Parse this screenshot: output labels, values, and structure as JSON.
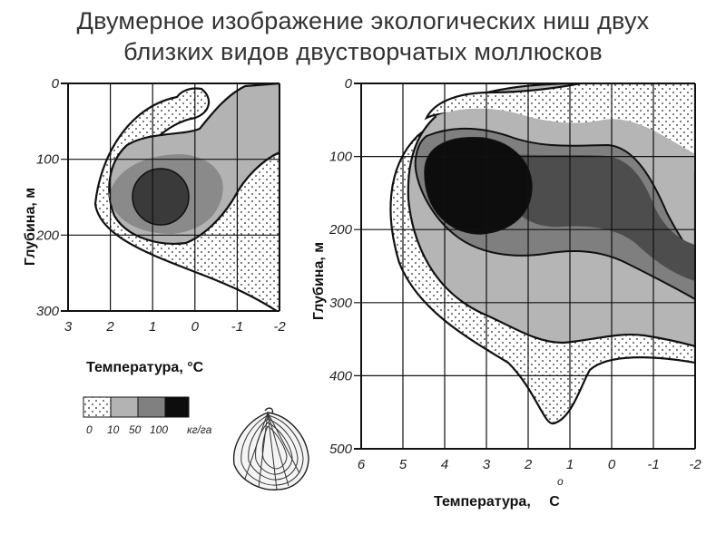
{
  "title": {
    "line1": "Двумерное изображение экологических ниш двух",
    "line2": "близких видов двустворчатых моллюсков"
  },
  "left_chart": {
    "ylabel": "Глубина, м",
    "xlabel_main": "Температура, ",
    "xlabel_deg": "°C",
    "depth_ticks": [
      "0",
      "100",
      "200",
      "300"
    ],
    "temp_ticks": [
      "3",
      "2",
      "1",
      "0",
      "-1",
      "-2"
    ]
  },
  "right_chart": {
    "ylabel": "Глубина, м",
    "xlabel_main": "Температура, ",
    "xlabel_deg": "C",
    "xlabel_sup": "o",
    "depth_ticks": [
      "0",
      "100",
      "200",
      "300",
      "400",
      "500"
    ],
    "temp_ticks": [
      "6",
      "5",
      "4",
      "3",
      "2",
      "1",
      "0",
      "-1",
      "-2"
    ]
  },
  "legend": {
    "labels": [
      "0",
      "10",
      "50",
      "100"
    ],
    "unit": "кг/га"
  },
  "colors": {
    "dots": "#222222",
    "light_gray": "#b3b3b3",
    "mid_gray": "#8a8a8a",
    "dark_gray": "#4d4d4d",
    "black": "#0d0d0d",
    "grid": "#111111"
  },
  "chart_data": [
    {
      "type": "heatmap",
      "title": "",
      "xlabel": "Температура, °C",
      "ylabel": "Глубина, м",
      "xlim": [
        3,
        -2
      ],
      "ylim": [
        0,
        300
      ],
      "levels_kg_per_ha": [
        0,
        10,
        50,
        100
      ],
      "peak": {
        "temperature": 0.9,
        "depth": 150
      }
    },
    {
      "type": "heatmap",
      "title": "",
      "xlabel": "Температура, °C",
      "ylabel": "Глубина, м",
      "xlim": [
        6,
        -2
      ],
      "ylim": [
        0,
        500
      ],
      "levels_kg_per_ha": [
        0,
        10,
        50,
        100
      ],
      "peak": {
        "temperature": 3.8,
        "depth": 130
      }
    }
  ]
}
